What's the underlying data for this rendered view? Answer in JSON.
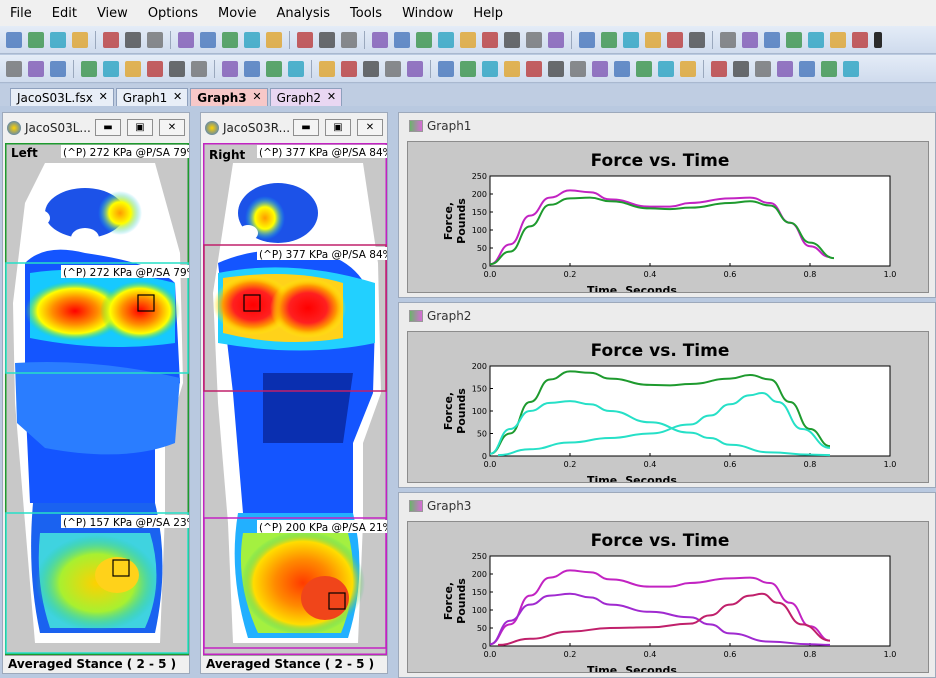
{
  "menu": [
    "File",
    "Edit",
    "View",
    "Options",
    "Movie",
    "Analysis",
    "Tools",
    "Window",
    "Help"
  ],
  "tabs": [
    {
      "label": "JacoS03L.fsx",
      "style": "normal"
    },
    {
      "label": "Graph1",
      "style": "normal"
    },
    {
      "label": "Graph3",
      "style": "active"
    },
    {
      "label": "Graph2",
      "style": "purple"
    }
  ],
  "tab_close": "✕",
  "colors": {
    "green": "#1e9a2e",
    "magenta": "#c223c2",
    "teal": "#26e0c7",
    "purple": "#a02ad0",
    "crimson": "#c0206b"
  },
  "foot_windows": [
    {
      "title": "JacoS03L...",
      "side_label": "Left",
      "regions": [
        "(^P) 272 KPa @P/SA 79%",
        "(^P) 272 KPa @P/SA 79%",
        "(^P) 157 KPa @P/SA 23%"
      ],
      "status": "Averaged Stance ( 2 - 5 )"
    },
    {
      "title": "JacoS03R...",
      "side_label": "Right",
      "regions": [
        "(^P) 377 KPa @P/SA 84%",
        "(^P) 377 KPa @P/SA 84%",
        "(^P) 200 KPa @P/SA 21%"
      ],
      "status": "Averaged Stance ( 2 - 5 )"
    }
  ],
  "graphs": [
    {
      "window_title": "Graph1"
    },
    {
      "window_title": "Graph2"
    },
    {
      "window_title": "Graph3"
    }
  ],
  "chart_data": [
    {
      "type": "line",
      "title": "Force vs. Time",
      "xlabel": "Time, Seconds",
      "ylabel": "Force, Pounds",
      "xlim": [
        0,
        1.0
      ],
      "ylim": [
        0,
        250
      ],
      "xticks": [
        "0.0",
        "0.2",
        "0.4",
        "0.6",
        "0.8",
        "1.0"
      ],
      "yticks": [
        "0",
        "50",
        "100",
        "150",
        "200",
        "250"
      ],
      "series": [
        {
          "color": "#c223c2",
          "points": [
            [
              0,
              5
            ],
            [
              0.05,
              60
            ],
            [
              0.1,
              140
            ],
            [
              0.15,
              190
            ],
            [
              0.2,
              210
            ],
            [
              0.25,
              205
            ],
            [
              0.3,
              185
            ],
            [
              0.4,
              165
            ],
            [
              0.45,
              165
            ],
            [
              0.5,
              175
            ],
            [
              0.6,
              188
            ],
            [
              0.65,
              190
            ],
            [
              0.7,
              175
            ],
            [
              0.75,
              120
            ],
            [
              0.8,
              55
            ],
            [
              0.85,
              25
            ]
          ]
        },
        {
          "color": "#1e9a2e",
          "points": [
            [
              0,
              5
            ],
            [
              0.05,
              40
            ],
            [
              0.1,
              110
            ],
            [
              0.15,
              170
            ],
            [
              0.2,
              188
            ],
            [
              0.25,
              190
            ],
            [
              0.3,
              180
            ],
            [
              0.4,
              160
            ],
            [
              0.45,
              158
            ],
            [
              0.5,
              162
            ],
            [
              0.6,
              175
            ],
            [
              0.65,
              180
            ],
            [
              0.7,
              168
            ],
            [
              0.75,
              120
            ],
            [
              0.8,
              65
            ],
            [
              0.86,
              22
            ]
          ]
        }
      ]
    },
    {
      "type": "line",
      "title": "Force vs. Time",
      "xlabel": "Time, Seconds",
      "ylabel": "Force, Pounds",
      "xlim": [
        0,
        1.0
      ],
      "ylim": [
        0,
        200
      ],
      "xticks": [
        "0.0",
        "0.2",
        "0.4",
        "0.6",
        "0.8",
        "1.0"
      ],
      "yticks": [
        "0",
        "50",
        "100",
        "150",
        "200"
      ],
      "series": [
        {
          "color": "#1e9a2e",
          "points": [
            [
              0,
              5
            ],
            [
              0.05,
              50
            ],
            [
              0.1,
              120
            ],
            [
              0.15,
              170
            ],
            [
              0.2,
              188
            ],
            [
              0.25,
              185
            ],
            [
              0.3,
              172
            ],
            [
              0.4,
              158
            ],
            [
              0.45,
              157
            ],
            [
              0.5,
              160
            ],
            [
              0.6,
              172
            ],
            [
              0.65,
              180
            ],
            [
              0.7,
              170
            ],
            [
              0.75,
              120
            ],
            [
              0.8,
              60
            ],
            [
              0.85,
              22
            ]
          ]
        },
        {
          "color": "#26e0c7",
          "points": [
            [
              0,
              5
            ],
            [
              0.05,
              60
            ],
            [
              0.1,
              100
            ],
            [
              0.15,
              118
            ],
            [
              0.2,
              122
            ],
            [
              0.25,
              115
            ],
            [
              0.3,
              100
            ],
            [
              0.4,
              75
            ],
            [
              0.5,
              52
            ],
            [
              0.55,
              40
            ],
            [
              0.6,
              25
            ],
            [
              0.7,
              8
            ],
            [
              0.8,
              3
            ],
            [
              0.85,
              2
            ]
          ]
        },
        {
          "color": "#26e0c7",
          "points": [
            [
              0.02,
              2
            ],
            [
              0.1,
              15
            ],
            [
              0.2,
              30
            ],
            [
              0.3,
              40
            ],
            [
              0.4,
              50
            ],
            [
              0.5,
              70
            ],
            [
              0.55,
              90
            ],
            [
              0.6,
              115
            ],
            [
              0.65,
              135
            ],
            [
              0.68,
              140
            ],
            [
              0.72,
              120
            ],
            [
              0.78,
              60
            ],
            [
              0.85,
              18
            ]
          ]
        }
      ]
    },
    {
      "type": "line",
      "title": "Force vs. Time",
      "xlabel": "Time, Seconds",
      "ylabel": "Force, Pounds",
      "xlim": [
        0,
        1.0
      ],
      "ylim": [
        0,
        250
      ],
      "xticks": [
        "0.0",
        "0.2",
        "0.4",
        "0.6",
        "0.8",
        "1.0"
      ],
      "yticks": [
        "0",
        "50",
        "100",
        "150",
        "200",
        "250"
      ],
      "series": [
        {
          "color": "#c223c2",
          "points": [
            [
              0,
              5
            ],
            [
              0.05,
              60
            ],
            [
              0.1,
              140
            ],
            [
              0.15,
              190
            ],
            [
              0.2,
              210
            ],
            [
              0.25,
              205
            ],
            [
              0.3,
              185
            ],
            [
              0.4,
              165
            ],
            [
              0.45,
              165
            ],
            [
              0.5,
              175
            ],
            [
              0.6,
              188
            ],
            [
              0.65,
              190
            ],
            [
              0.7,
              175
            ],
            [
              0.75,
              120
            ],
            [
              0.8,
              55
            ],
            [
              0.85,
              15
            ]
          ]
        },
        {
          "color": "#a02ad0",
          "points": [
            [
              0,
              5
            ],
            [
              0.05,
              70
            ],
            [
              0.1,
              115
            ],
            [
              0.15,
              140
            ],
            [
              0.2,
              145
            ],
            [
              0.25,
              135
            ],
            [
              0.3,
              115
            ],
            [
              0.4,
              95
            ],
            [
              0.5,
              80
            ],
            [
              0.55,
              60
            ],
            [
              0.6,
              35
            ],
            [
              0.7,
              12
            ],
            [
              0.8,
              5
            ],
            [
              0.85,
              3
            ]
          ]
        },
        {
          "color": "#c0206b",
          "points": [
            [
              0.02,
              3
            ],
            [
              0.1,
              20
            ],
            [
              0.2,
              40
            ],
            [
              0.3,
              50
            ],
            [
              0.4,
              52
            ],
            [
              0.5,
              62
            ],
            [
              0.55,
              85
            ],
            [
              0.6,
              115
            ],
            [
              0.65,
              140
            ],
            [
              0.68,
              145
            ],
            [
              0.72,
              120
            ],
            [
              0.78,
              60
            ],
            [
              0.85,
              15
            ]
          ]
        }
      ]
    }
  ]
}
